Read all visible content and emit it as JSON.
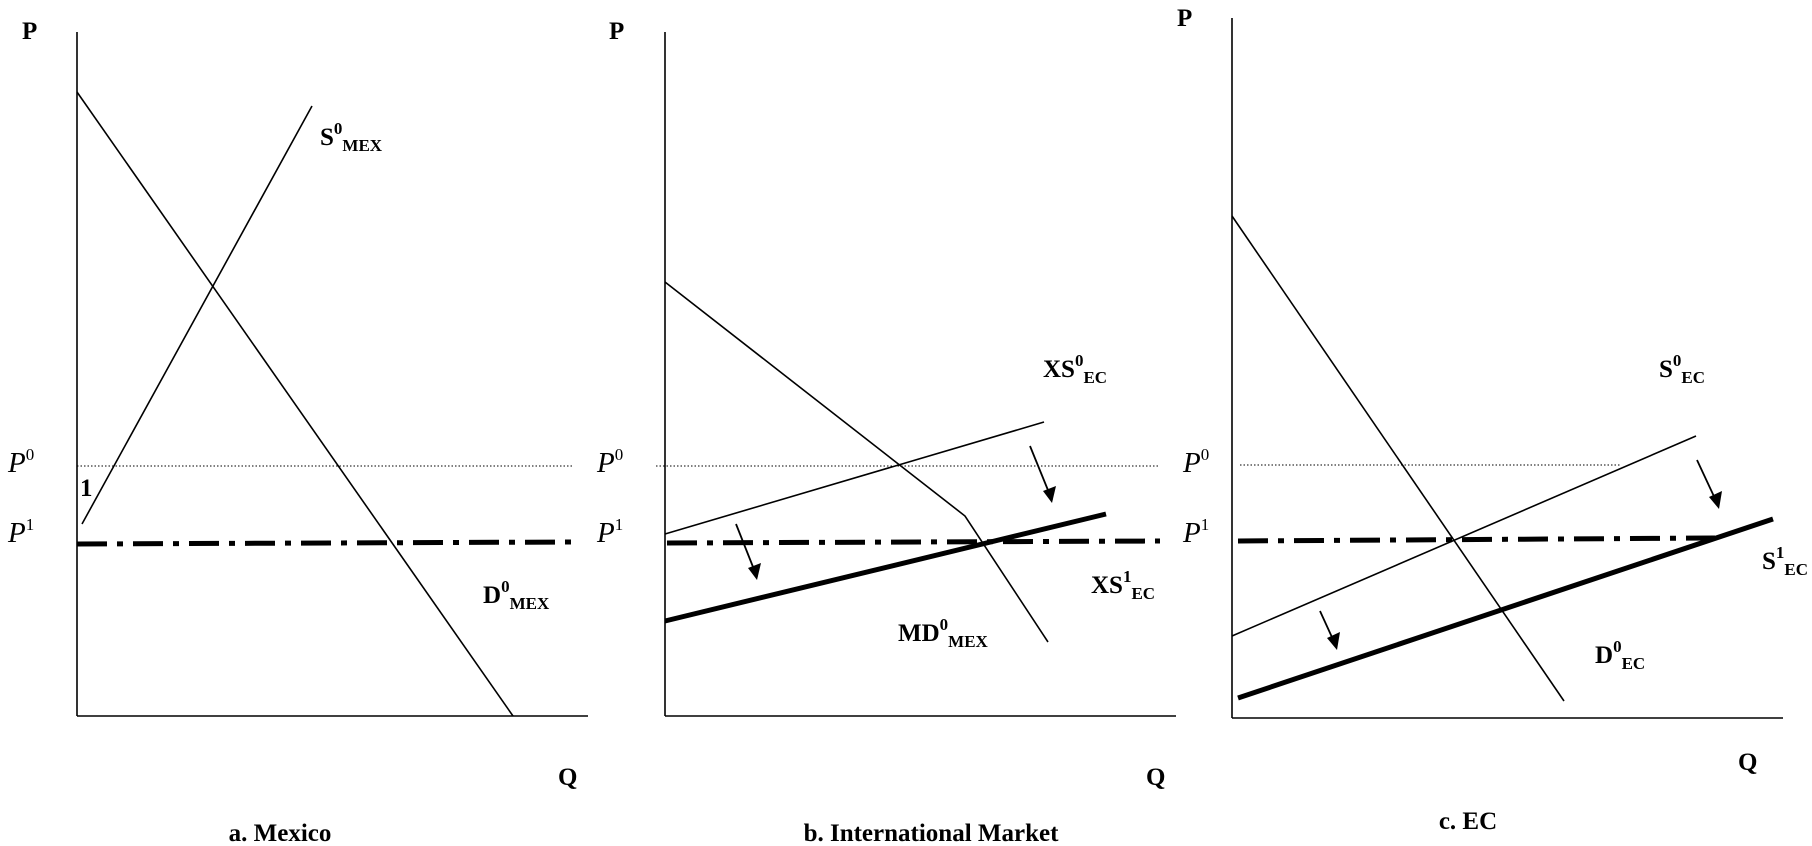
{
  "panels": [
    {
      "title": "a. Mexico",
      "y_axis": "P",
      "x_axis": "Q",
      "price_labels": [
        {
          "base": "P",
          "sup": "0"
        },
        {
          "base": "P",
          "sup": "1"
        }
      ],
      "point_marker": "1",
      "curve_labels": [
        {
          "base": "S",
          "sup": "0",
          "sub": "MEX"
        },
        {
          "base": "D",
          "sup": "0",
          "sub": "MEX"
        }
      ]
    },
    {
      "title": "b. International Market",
      "y_axis": "P",
      "x_axis": "Q",
      "price_labels": [
        {
          "base": "P",
          "sup": "0"
        },
        {
          "base": "P",
          "sup": "1"
        }
      ],
      "curve_labels": [
        {
          "base": "XS",
          "sup": "0",
          "sub": "EC"
        },
        {
          "base": "XS",
          "sup": "1",
          "sub": "EC"
        },
        {
          "base": "MD",
          "sup": "0",
          "sub": "MEX"
        }
      ]
    },
    {
      "title": "c. EC",
      "y_axis": "P",
      "x_axis": "Q",
      "price_labels": [
        {
          "base": "P",
          "sup": "0"
        },
        {
          "base": "P",
          "sup": "1"
        }
      ],
      "curve_labels": [
        {
          "base": "S",
          "sup": "0",
          "sub": "EC"
        },
        {
          "base": "S",
          "sup": "1",
          "sub": "EC"
        },
        {
          "base": "D",
          "sup": "0",
          "sub": "EC"
        }
      ]
    }
  ]
}
